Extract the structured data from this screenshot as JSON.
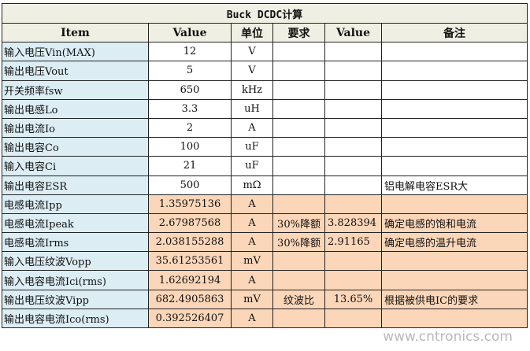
{
  "title": "Buck DCDC计算",
  "headers": [
    "Item",
    "Value",
    "单位",
    "要求",
    "Value",
    "备注"
  ],
  "rows": [
    {
      "item": "输入电压Vin(MAX)",
      "value": "12",
      "unit": "V",
      "req": "",
      "value2": "",
      "note": "",
      "calc": false
    },
    {
      "item": "输出电压Vout",
      "value": "5",
      "unit": "V",
      "req": "",
      "value2": "",
      "note": "",
      "calc": false
    },
    {
      "item": "开关频率fsw",
      "value": "650",
      "unit": "kHz",
      "req": "",
      "value2": "",
      "note": "",
      "calc": false
    },
    {
      "item": "输出电感Lo",
      "value": "3.3",
      "unit": "uH",
      "req": "",
      "value2": "",
      "note": "",
      "calc": false
    },
    {
      "item": "输出电流Io",
      "value": "2",
      "unit": "A",
      "req": "",
      "value2": "",
      "note": "",
      "calc": false
    },
    {
      "item": "输出电容Co",
      "value": "100",
      "unit": "uF",
      "req": "",
      "value2": "",
      "note": "",
      "calc": false
    },
    {
      "item": "输入电容Ci",
      "value": "21",
      "unit": "uF",
      "req": "",
      "value2": "",
      "note": "",
      "calc": false
    },
    {
      "item": "输出电容ESR",
      "value": "500",
      "unit": "mΩ",
      "req": "",
      "value2": "",
      "note": "铝电解电容ESR大",
      "calc": false
    },
    {
      "item": "电感电流Ipp",
      "value": "1.35975136",
      "unit": "A",
      "req": "",
      "value2": "",
      "note": "",
      "calc": true
    },
    {
      "item": "电感电流Ipeak",
      "value": "2.67987568",
      "unit": "A",
      "req": "30%降额",
      "value2": "3.828394",
      "note": "确定电感的饱和电流",
      "calc": true
    },
    {
      "item": "电感电流Irms",
      "value": "2.038155288",
      "unit": "A",
      "req": "30%降额",
      "value2": "2.91165",
      "note": "确定电感的温升电流",
      "calc": true
    },
    {
      "item": "输入电压纹波Vopp",
      "value": "35.61253561",
      "unit": "mV",
      "req": "",
      "value2": "",
      "note": "",
      "calc": true
    },
    {
      "item": "输入电容电流Ici(rms)",
      "value": "1.62692194",
      "unit": "A",
      "req": "",
      "value2": "",
      "note": "",
      "calc": true
    },
    {
      "item": "输出电压纹波Vipp",
      "value": "682.4905863",
      "unit": "mV",
      "req": "纹波比",
      "value2": "13.65%",
      "note": "根据被供电IC的要求",
      "calc": true
    },
    {
      "item": "输出电容电流Ico(rms)",
      "value": "0.392526407",
      "unit": "A",
      "req": "",
      "value2": "",
      "note": "",
      "calc": true
    }
  ],
  "watermark": "www.cntronics.com",
  "colors": {
    "item_bg": "#dcedf4",
    "calc_bg": "#fbd6b8",
    "header_bg": "#efefe3"
  }
}
